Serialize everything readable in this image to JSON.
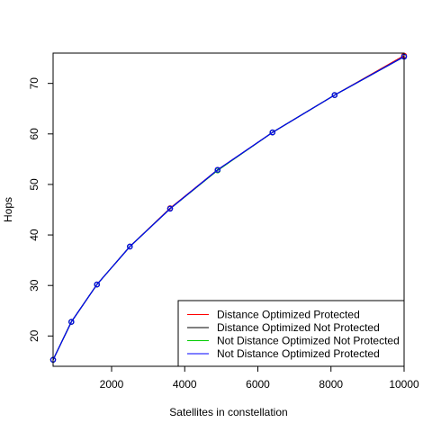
{
  "chart_data": {
    "type": "line",
    "xlabel": "Satellites in constellation",
    "ylabel": "Hops",
    "xlim": [
      400,
      10000
    ],
    "ylim": [
      14,
      76
    ],
    "x_ticks": [
      2000,
      4000,
      6000,
      8000,
      10000
    ],
    "y_ticks": [
      20,
      30,
      40,
      50,
      60,
      70
    ],
    "grid": false,
    "legend_position": "bottom-right",
    "x": [
      400,
      900,
      1600,
      2500,
      3600,
      4900,
      6400,
      8100,
      10000
    ],
    "series": [
      {
        "name": "Distance Optimized Protected",
        "color": "#ff0000",
        "values": [
          15.3,
          22.8,
          30.2,
          37.7,
          45.3,
          52.9,
          60.3,
          67.7,
          75.5
        ]
      },
      {
        "name": "Distance Optimized Not Protected",
        "color": "#000000",
        "values": [
          15.3,
          22.8,
          30.2,
          37.7,
          45.2,
          52.8,
          60.3,
          67.7,
          75.3
        ]
      },
      {
        "name": "Not Distance Optimized Not Protected",
        "color": "#00cc00",
        "values": [
          15.3,
          22.8,
          30.2,
          37.7,
          45.2,
          52.8,
          60.3,
          67.7,
          75.3
        ]
      },
      {
        "name": "Not Distance Optimized Protected",
        "color": "#0000ff",
        "values": [
          15.3,
          22.8,
          30.2,
          37.7,
          45.2,
          52.9,
          60.3,
          67.7,
          75.3
        ]
      }
    ]
  }
}
